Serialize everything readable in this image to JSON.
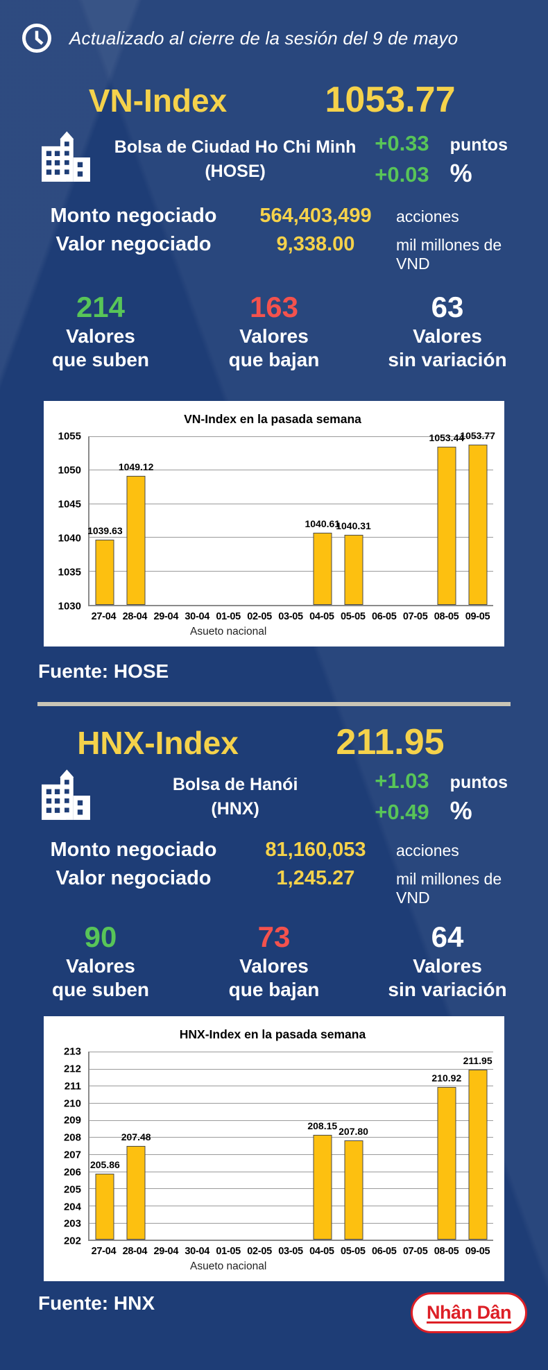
{
  "colors": {
    "background": "#1e3d76",
    "accent_yellow": "#f5d24b",
    "positive_green": "#58c558",
    "negative_red": "#f4524d",
    "bar_fill": "#fdc010",
    "bar_border": "#4a4a4a",
    "divider": "#c9c5b6",
    "logo_red": "#dd1f26",
    "chart_bg": "#ffffff"
  },
  "icons": {
    "header": "clock-icon",
    "exchange": "building-icon"
  },
  "header": {
    "updated_text": "Actualizado al cierre de la sesión del 9 de mayo"
  },
  "sections": [
    {
      "index_name": "VN-Index",
      "index_value": "1053.77",
      "exchange_line1": "Bolsa de Ciudad Ho Chi Minh",
      "exchange_line2": "(HOSE)",
      "change_points": "+0.33",
      "points_label": "puntos",
      "change_percent": "+0.03",
      "percent_label": "%",
      "volume_label": "Monto negociado",
      "volume_value": "564,403,499",
      "volume_unit": "acciones",
      "value_label": "Valor negociado",
      "value_value": "9,338.00",
      "value_unit": "mil millones de VND",
      "advancers": {
        "count": "214",
        "line1": "Valores",
        "line2": "que suben"
      },
      "decliners": {
        "count": "163",
        "line1": "Valores",
        "line2": "que bajan"
      },
      "unchanged": {
        "count": "63",
        "line1": "Valores",
        "line2": "sin variación"
      },
      "source": "Fuente: HOSE"
    },
    {
      "index_name": "HNX-Index",
      "index_value": "211.95",
      "exchange_line1": "Bolsa de Hanói",
      "exchange_line2": "(HNX)",
      "change_points": "+1.03",
      "points_label": "puntos",
      "change_percent": "+0.49",
      "percent_label": "%",
      "volume_label": "Monto negociado",
      "volume_value": "81,160,053",
      "volume_unit": "acciones",
      "value_label": "Valor negociado",
      "value_value": "1,245.27",
      "value_unit": "mil millones de VND",
      "advancers": {
        "count": "90",
        "line1": "Valores",
        "line2": "que suben"
      },
      "decliners": {
        "count": "73",
        "line1": "Valores",
        "line2": "que bajan"
      },
      "unchanged": {
        "count": "64",
        "line1": "Valores",
        "line2": "sin variación"
      },
      "source": "Fuente: HNX"
    }
  ],
  "chart_data": [
    {
      "type": "bar",
      "title": "VN-Index en la pasada semana",
      "categories": [
        "27-04",
        "28-04",
        "29-04",
        "30-04",
        "01-05",
        "02-05",
        "03-05",
        "04-05",
        "05-05",
        "06-05",
        "07-05",
        "08-05",
        "09-05"
      ],
      "values": [
        1039.63,
        1049.12,
        null,
        null,
        null,
        null,
        null,
        1040.61,
        1040.31,
        null,
        null,
        1053.44,
        1053.77
      ],
      "xlabel": "Asueto nacional",
      "xlabel_anchor_index": 4,
      "ylabel": "",
      "ylim": [
        1030,
        1055
      ],
      "ytick_step": 5,
      "grid": true,
      "legend": "none"
    },
    {
      "type": "bar",
      "title": "HNX-Index en la pasada semana",
      "categories": [
        "27-04",
        "28-04",
        "29-04",
        "30-04",
        "01-05",
        "02-05",
        "03-05",
        "04-05",
        "05-05",
        "06-05",
        "07-05",
        "08-05",
        "09-05"
      ],
      "values": [
        205.86,
        207.48,
        null,
        null,
        null,
        null,
        null,
        208.15,
        207.8,
        null,
        null,
        210.92,
        211.95
      ],
      "xlabel": "Asueto nacional",
      "xlabel_anchor_index": 4,
      "ylabel": "",
      "ylim": [
        202,
        213
      ],
      "ytick_step": 1,
      "grid": true,
      "legend": "none"
    }
  ],
  "footer": {
    "logo_text": "Nhân Dân"
  }
}
